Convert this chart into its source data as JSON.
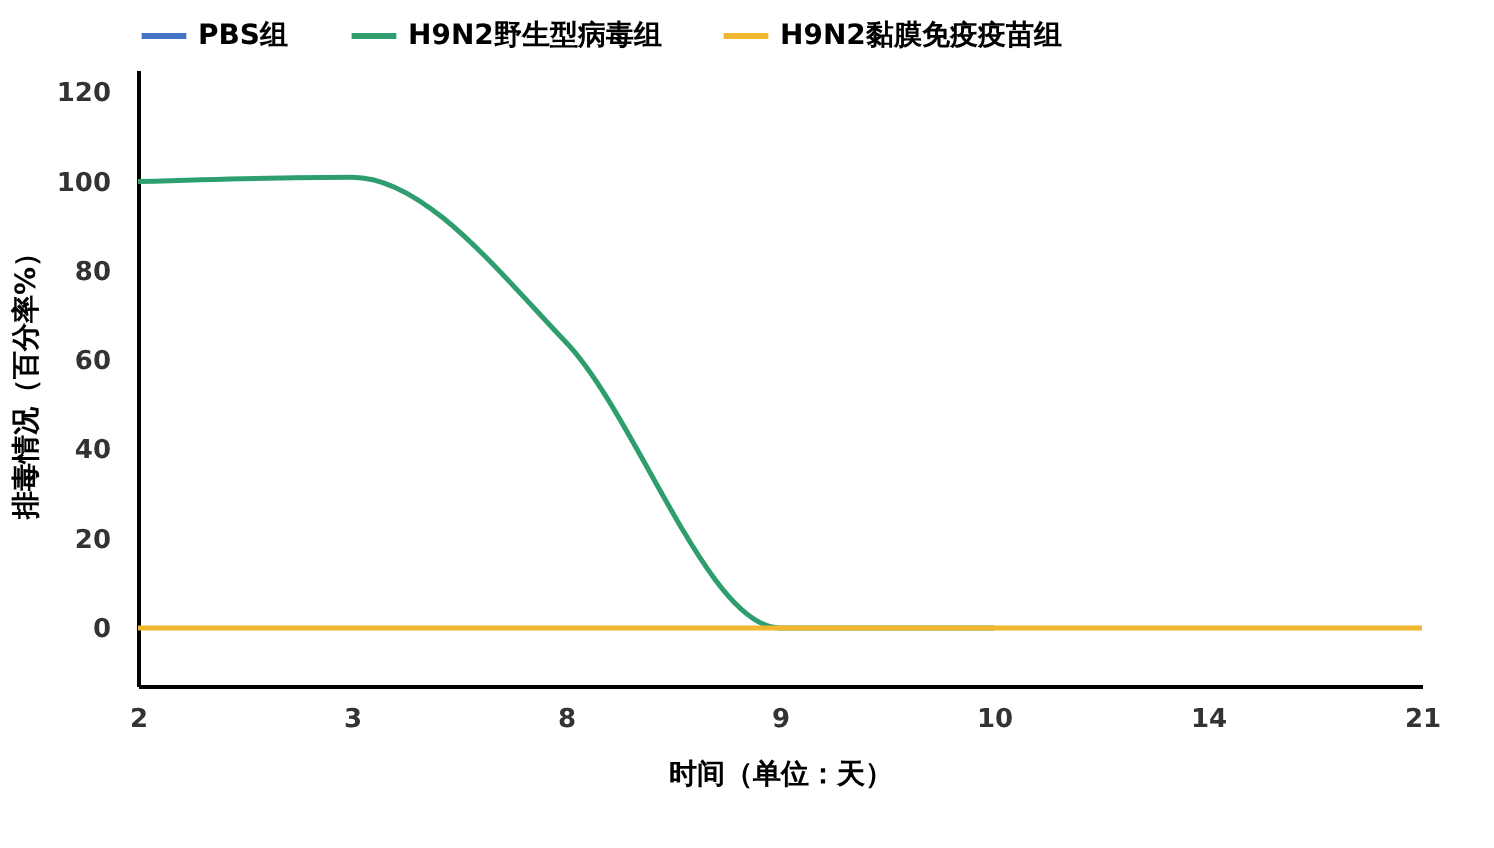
{
  "chart_data": {
    "type": "line",
    "xlabel": "时间（单位：天）",
    "ylabel": "排毒情况（百分率%）",
    "categories": [
      "2",
      "3",
      "8",
      "9",
      "10",
      "14",
      "21"
    ],
    "series": [
      {
        "name": "PBS组",
        "color": "#4472c4",
        "values": [
          null,
          null,
          null,
          null,
          null,
          null,
          null
        ]
      },
      {
        "name": "H9N2野生型病毒组",
        "color": "#2e9e6e",
        "values": [
          100,
          101,
          64,
          0,
          0,
          null,
          null
        ]
      },
      {
        "name": "H9N2黏膜免疫疫苗组",
        "color": "#f2b731",
        "values": [
          0,
          0,
          0,
          0,
          0,
          0,
          0
        ]
      }
    ],
    "ylim": [
      -13,
      125
    ],
    "yticks": [
      0,
      20,
      40,
      60,
      80,
      100,
      120
    ],
    "grid": false,
    "legend": "top",
    "marker": "none",
    "line_style": "solid"
  }
}
